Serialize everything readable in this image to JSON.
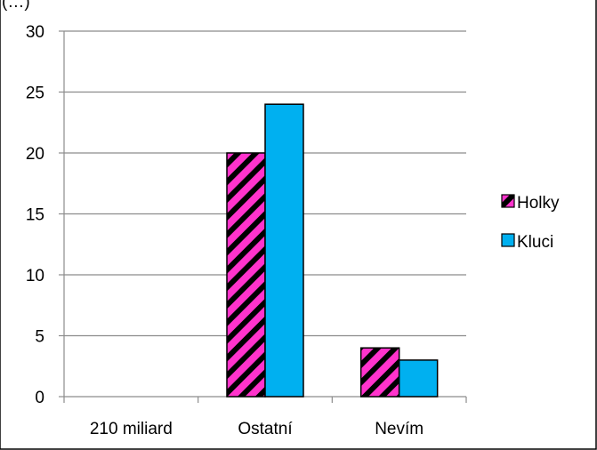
{
  "chart_data": {
    "type": "bar",
    "title": "",
    "xlabel": "",
    "ylabel": "",
    "categories": [
      "210 miliard",
      "Ostatní",
      "Nevím"
    ],
    "series": [
      {
        "name": "Holky",
        "values": [
          0,
          20,
          4
        ],
        "color": "#ff33cc",
        "pattern": "black-diagonal-stripes"
      },
      {
        "name": "Kluci",
        "values": [
          0,
          24,
          3
        ],
        "color": "#00b0f0",
        "pattern": "solid"
      }
    ],
    "ylim": [
      0,
      30
    ],
    "yticks": [
      0,
      5,
      10,
      15,
      20,
      25,
      30
    ],
    "grid": true,
    "legend_position": "right",
    "top_cropped_text": "(…)"
  }
}
